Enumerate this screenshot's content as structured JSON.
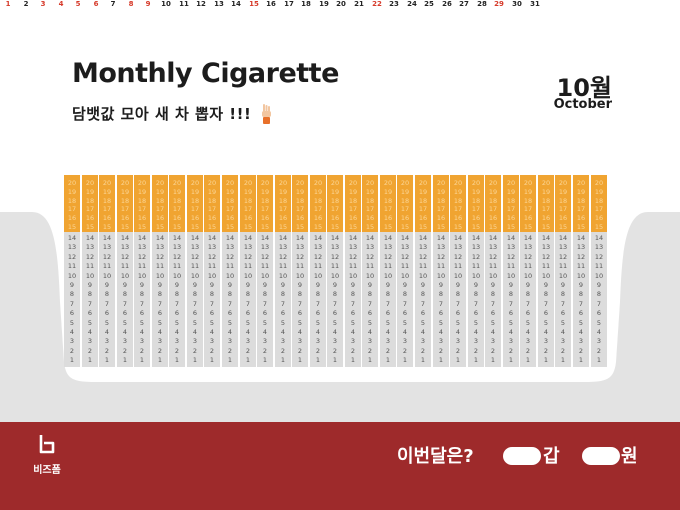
{
  "header": {
    "title": "Monthly Cigarette",
    "subtitle": "담뱃값 모아 새 차 뽑자 !!!",
    "month": "10월",
    "month_en": "October"
  },
  "calendar": {
    "days": [
      "1",
      "2",
      "3",
      "4",
      "5",
      "6",
      "7",
      "8",
      "9",
      "10",
      "11",
      "12",
      "13",
      "14",
      "15",
      "16",
      "17",
      "18",
      "19",
      "20",
      "21",
      "22",
      "23",
      "24",
      "25",
      "26",
      "27",
      "28",
      "29",
      "30",
      "31"
    ],
    "red_days": [
      1,
      3,
      4,
      5,
      6,
      8,
      9,
      15,
      22,
      29
    ],
    "filter_numbers": [
      "20",
      "19",
      "18",
      "17",
      "16",
      "15"
    ],
    "body_numbers": [
      "14",
      "13",
      "12",
      "11",
      "10",
      "9",
      "8",
      "7",
      "6",
      "5",
      "4",
      "3",
      "2",
      "1"
    ],
    "colors": {
      "filter": "#f0a431",
      "paper": "#dcdcdc",
      "holiday": "#d63a2a"
    }
  },
  "footer": {
    "brand": "비즈폼",
    "question": "이번달은?",
    "count_unit": "갑",
    "money_unit": "원",
    "bar_color": "#9e2a2b"
  }
}
